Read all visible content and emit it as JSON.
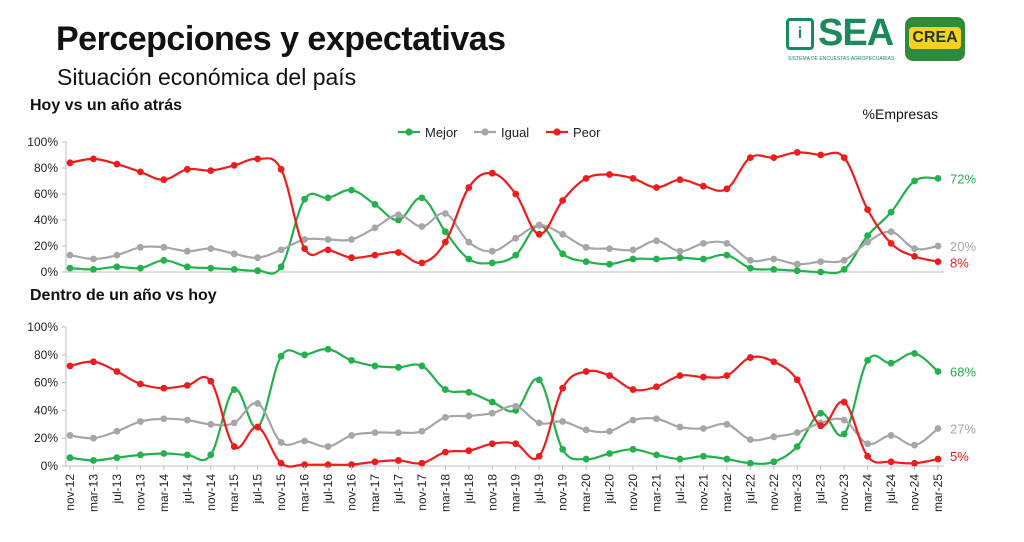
{
  "header": {
    "title": "Percepciones y expectativas",
    "subtitle": "Situación económica del país",
    "unit_note": "%Empresas",
    "logo_sea": "SEA",
    "logo_sea_small": "SISTEMA DE ENCUESTAS AGROPECUARIAS",
    "logo_crea": "CREA"
  },
  "chart_data": [
    {
      "type": "line",
      "title": "Hoy vs un año atrás",
      "ylim": [
        0,
        100
      ],
      "yticks": [
        "0%",
        "20%",
        "40%",
        "60%",
        "80%",
        "100%"
      ],
      "legend": "top-center",
      "categories": [
        "nov-12",
        "mar-13",
        "jul-13",
        "nov-13",
        "mar-14",
        "jul-14",
        "nov-14",
        "mar-15",
        "jul-15",
        "nov-15",
        "mar-16",
        "jul-16",
        "nov-16",
        "mar-17",
        "jul-17",
        "nov-17",
        "mar-18",
        "jul-18",
        "nov-18",
        "mar-19",
        "jul-19",
        "nov-19",
        "mar-20",
        "jul-20",
        "nov-20",
        "mar-21",
        "jul-21",
        "nov-21",
        "mar-22",
        "jul-22",
        "nov-22",
        "mar-23",
        "jul-23",
        "nov-23",
        "mar-24",
        "jul-24",
        "nov-24",
        "mar-25"
      ],
      "series": [
        {
          "name": "Mejor",
          "color": "#22b14c",
          "end_label": "72%",
          "values": [
            3,
            2,
            4,
            3,
            9,
            4,
            3,
            2,
            1,
            4,
            56,
            57,
            63,
            52,
            40,
            57,
            31,
            10,
            7,
            13,
            36,
            14,
            8,
            6,
            10,
            10,
            11,
            10,
            13,
            3,
            2,
            1,
            0,
            2,
            28,
            46,
            70,
            72
          ]
        },
        {
          "name": "Igual",
          "color": "#a6a6a6",
          "end_label": "20%",
          "values": [
            13,
            10,
            13,
            19,
            19,
            16,
            18,
            14,
            11,
            17,
            25,
            25,
            25,
            34,
            44,
            35,
            45,
            23,
            16,
            26,
            36,
            29,
            19,
            18,
            17,
            24,
            16,
            22,
            22,
            9,
            10,
            6,
            8,
            9,
            23,
            31,
            18,
            20
          ]
        },
        {
          "name": "Peor",
          "color": "#ee1c1c",
          "end_label": "8%",
          "values": [
            84,
            87,
            83,
            77,
            71,
            79,
            78,
            82,
            87,
            79,
            18,
            17,
            11,
            13,
            15,
            7,
            23,
            65,
            76,
            60,
            29,
            55,
            72,
            75,
            72,
            65,
            71,
            66,
            64,
            88,
            88,
            92,
            90,
            88,
            48,
            22,
            12,
            8
          ]
        }
      ]
    },
    {
      "type": "line",
      "title": "Dentro de un año vs hoy",
      "ylim": [
        0,
        100
      ],
      "yticks": [
        "0%",
        "20%",
        "40%",
        "60%",
        "80%",
        "100%"
      ],
      "categories": [
        "nov-12",
        "mar-13",
        "jul-13",
        "nov-13",
        "mar-14",
        "jul-14",
        "nov-14",
        "mar-15",
        "jul-15",
        "nov-15",
        "mar-16",
        "jul-16",
        "nov-16",
        "mar-17",
        "jul-17",
        "nov-17",
        "mar-18",
        "jul-18",
        "nov-18",
        "mar-19",
        "jul-19",
        "nov-19",
        "mar-20",
        "jul-20",
        "nov-20",
        "mar-21",
        "jul-21",
        "nov-21",
        "mar-22",
        "jul-22",
        "nov-22",
        "mar-23",
        "jul-23",
        "nov-23",
        "mar-24",
        "jul-24",
        "nov-24",
        "mar-25"
      ],
      "xtick_labels": [
        "nov-12",
        "mar-13",
        "jul-13",
        "nov-13",
        "mar-14",
        "jul-14",
        "nov-14",
        "mar-15",
        "jul-15",
        "nov-15",
        "mar-16",
        "jul-16",
        "nov-16",
        "mar-17",
        "jul-17",
        "nov-17",
        "mar-18",
        "jul-18",
        "nov-18",
        "mar-19",
        "jul-19",
        "nov-19",
        "mar-20",
        "jul-20",
        "nov-20",
        "mar-21",
        "jul-21",
        "nov-21",
        "mar-22",
        "jul-22",
        "nov-22",
        "mar-23",
        "jul-23",
        "nov-23",
        "mar-24",
        "jul-24",
        "nov-24",
        "mar-25"
      ],
      "series": [
        {
          "name": "Mejor",
          "color": "#22b14c",
          "end_label": "68%",
          "values": [
            6,
            4,
            6,
            8,
            9,
            8,
            8,
            55,
            28,
            79,
            80,
            84,
            76,
            72,
            71,
            72,
            55,
            53,
            46,
            40,
            62,
            12,
            5,
            9,
            12,
            8,
            5,
            7,
            5,
            2,
            3,
            14,
            38,
            23,
            76,
            74,
            81,
            68
          ]
        },
        {
          "name": "Igual",
          "color": "#a6a6a6",
          "end_label": "27%",
          "values": [
            22,
            20,
            25,
            32,
            34,
            33,
            30,
            31,
            45,
            17,
            18,
            14,
            22,
            24,
            24,
            25,
            35,
            36,
            38,
            43,
            31,
            32,
            26,
            25,
            33,
            34,
            28,
            27,
            30,
            19,
            21,
            24,
            31,
            33,
            16,
            22,
            15,
            27
          ]
        },
        {
          "name": "Peor",
          "color": "#ee1c1c",
          "end_label": "5%",
          "values": [
            72,
            75,
            68,
            59,
            56,
            58,
            61,
            14,
            28,
            2,
            1,
            1,
            1,
            3,
            4,
            2,
            10,
            11,
            16,
            16,
            7,
            56,
            68,
            65,
            55,
            57,
            65,
            64,
            65,
            78,
            75,
            62,
            29,
            46,
            7,
            3,
            2,
            5
          ]
        }
      ]
    }
  ]
}
